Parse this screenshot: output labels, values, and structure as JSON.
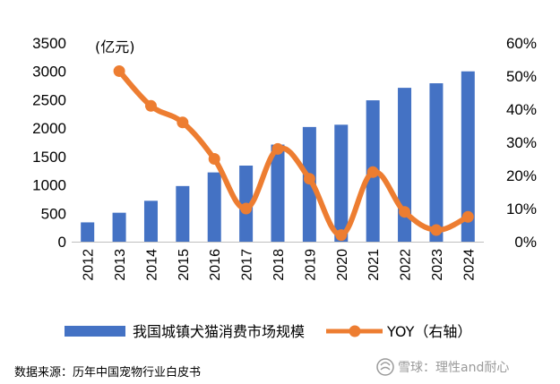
{
  "chart_data": {
    "type": "bar+line",
    "unit_label": "(亿元)",
    "categories": [
      "2012",
      "2013",
      "2014",
      "2015",
      "2016",
      "2017",
      "2018",
      "2019",
      "2020",
      "2021",
      "2022",
      "2023",
      "2024"
    ],
    "left_axis": {
      "min": 0,
      "max": 3500,
      "step": 500,
      "ticks": [
        "0",
        "500",
        "1000",
        "1500",
        "2000",
        "2500",
        "3000",
        "3500"
      ]
    },
    "right_axis": {
      "min": 0,
      "max": 60,
      "step": 10,
      "ticks": [
        "0%",
        "10%",
        "20%",
        "30%",
        "40%",
        "50%",
        "60%"
      ]
    },
    "series": [
      {
        "name": "我国城镇犬猫消费市场规模",
        "type": "bar",
        "axis": "left",
        "color": "#4472C4",
        "values": [
          340,
          510,
          720,
          980,
          1220,
          1340,
          1710,
          2020,
          2060,
          2490,
          2710,
          2790,
          3000
        ]
      },
      {
        "name": "YOY（右轴）",
        "type": "line",
        "axis": "right",
        "color": "#ED7D31",
        "values": [
          null,
          51.5,
          41.0,
          36.0,
          25.0,
          10.0,
          28.0,
          19.0,
          2.0,
          21.0,
          9.0,
          3.5,
          7.5
        ]
      }
    ],
    "legend_position": "bottom",
    "grid": false
  },
  "source_note": "数据来源：历年中国宠物行业白皮书",
  "watermark": "雪球：理性and耐心"
}
